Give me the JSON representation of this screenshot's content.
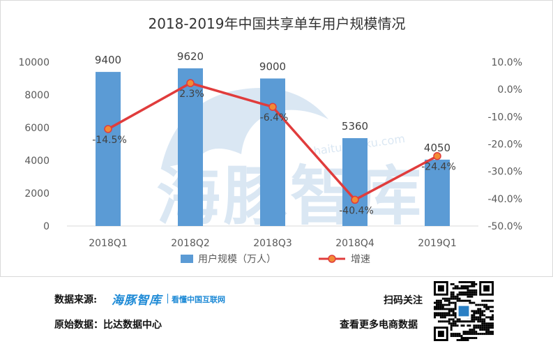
{
  "chart_data": {
    "type": "bar+line",
    "title": "2018-2019年中国共享单车用户规模情况",
    "categories": [
      "2018Q1",
      "2018Q2",
      "2018Q3",
      "2018Q4",
      "2019Q1"
    ],
    "series": [
      {
        "name": "用户规模（万人）",
        "type": "bar",
        "axis": "left",
        "values": [
          9400,
          9620,
          9000,
          5360,
          4050
        ],
        "value_labels": [
          "9400",
          "9620",
          "9000",
          "5360",
          "4050"
        ]
      },
      {
        "name": "增速",
        "type": "line",
        "axis": "right",
        "values": [
          -14.5,
          2.3,
          -6.4,
          -40.4,
          -24.4
        ],
        "value_labels": [
          "-14.5%",
          "2.3%",
          "-6.4%",
          "-40.4%",
          "-24.4%"
        ]
      }
    ],
    "y_left": {
      "ylim": [
        0,
        10000
      ],
      "ticks": [
        "0",
        "2000",
        "4000",
        "6000",
        "8000",
        "10000"
      ]
    },
    "y_right": {
      "ylim": [
        -50,
        10
      ],
      "ticks": [
        "-50.0%",
        "-40.0%",
        "-30.0%",
        "-20.0%",
        "-10.0%",
        "0.0%",
        "10.0%"
      ]
    },
    "grid": false,
    "legend_position": "bottom",
    "colors": {
      "bar": "#5b9bd5",
      "line": "#e03c3c",
      "marker_fill": "#f28b35"
    }
  },
  "watermark": {
    "text": "海豚智库",
    "url": "haitunzhiku.com"
  },
  "footer": {
    "source_label": "数据来源:",
    "brand_logo": "海豚智库",
    "brand_tagline": "看懂中国互联网",
    "original_label": "原始数据：比达数据中心",
    "scan_label": "扫码关注",
    "more_label": "查看更多电商数据"
  }
}
